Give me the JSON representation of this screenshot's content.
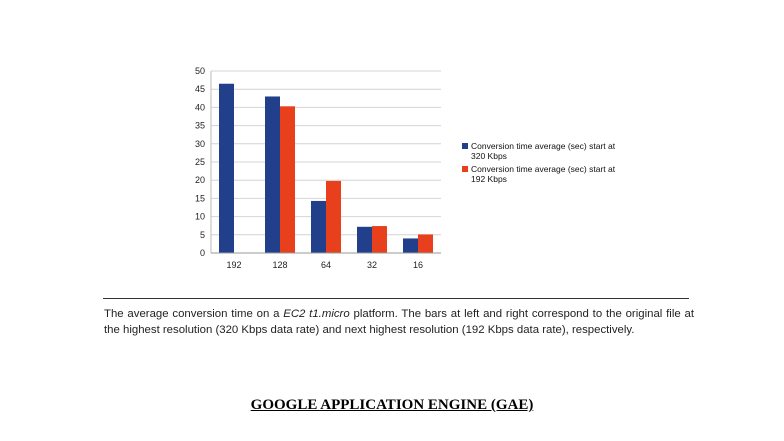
{
  "chart_data": {
    "type": "bar",
    "categories": [
      "192",
      "128",
      "64",
      "32",
      "16"
    ],
    "series": [
      {
        "name": "Conversion time average (sec) start at 320 Kbps",
        "color": "#213f8a",
        "values": [
          46.5,
          43,
          14.3,
          7.2,
          4
        ]
      },
      {
        "name": "Conversion time average (sec) start at 192 Kbps",
        "color": "#e8401c",
        "values": [
          null,
          40.3,
          19.8,
          7.4,
          5.1
        ]
      }
    ],
    "yticks": [
      0,
      5,
      10,
      15,
      20,
      25,
      30,
      35,
      40,
      45,
      50
    ],
    "ylim": [
      0,
      50
    ],
    "grid": true,
    "legend_position": "right",
    "title": "",
    "xlabel": "",
    "ylabel": ""
  },
  "caption": {
    "prefix": "The average conversion time on a ",
    "emphasis": "EC2 t1.micro",
    "suffix": " platform. The bars at left and right correspond to the original file at the highest resolution (320 Kbps data rate) and next highest resolution (192 Kbps data rate), respectively."
  },
  "heading": "GOOGLE APPLICATION ENGINE (GAE)"
}
